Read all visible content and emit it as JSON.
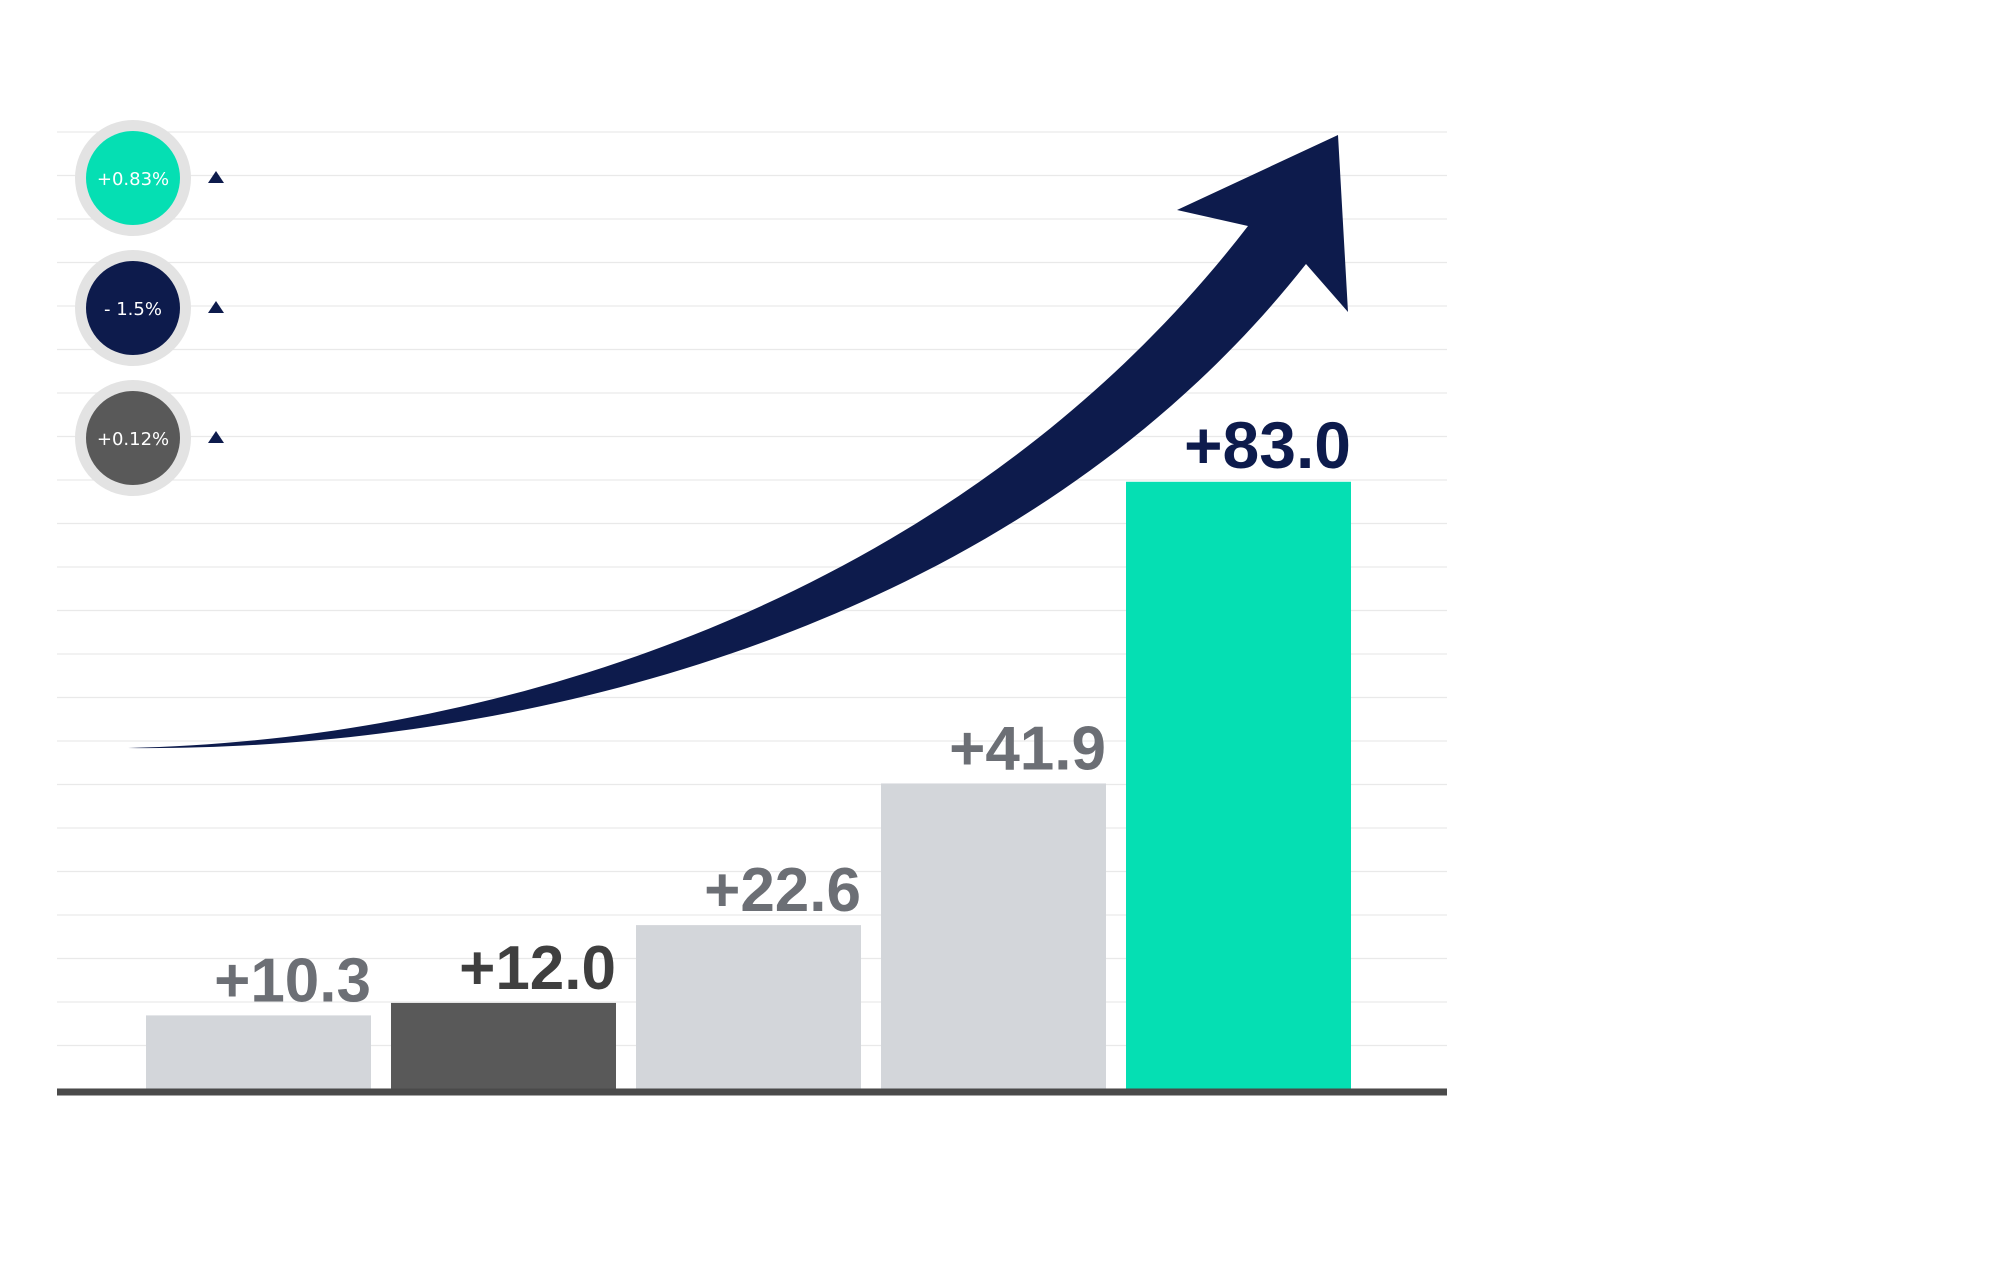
{
  "colors": {
    "accent": "#05dfb3",
    "navy": "#0d1b4c",
    "dark_gray": "#595959",
    "light_gray": "#d3d6da",
    "label_gray": "#6c6f75",
    "baseline": "#4a4a4a",
    "gridline": "#e9e9e9",
    "badge_ring": "#e3e3e3"
  },
  "legend": [
    {
      "label": "+0.83%",
      "color": "#05dfb3",
      "indicator": "up-triangle-icon"
    },
    {
      "label": "- 1.5%",
      "color": "#0d1b4c",
      "indicator": "up-triangle-icon"
    },
    {
      "label": "+0.12%",
      "color": "#595959",
      "indicator": "up-triangle-icon"
    }
  ],
  "chart_data": {
    "type": "bar",
    "title": "",
    "xlabel": "",
    "ylabel": "",
    "values": [
      10.3,
      12.0,
      22.6,
      41.9,
      83.0
    ],
    "data_labels": [
      "+10.3",
      "+12.0",
      "+22.6",
      "+41.9",
      "+83.0"
    ],
    "bar_colors": [
      "#d3d6da",
      "#595959",
      "#d3d6da",
      "#d3d6da",
      "#05dfb3"
    ],
    "label_colors": [
      "#6c6f75",
      "#3f3f3f",
      "#6c6f75",
      "#6c6f75",
      "#0d1b4c"
    ],
    "trend_arrow": {
      "direction": "up",
      "color": "#0d1b4c"
    },
    "grid": true,
    "legend_position": "top-left"
  }
}
